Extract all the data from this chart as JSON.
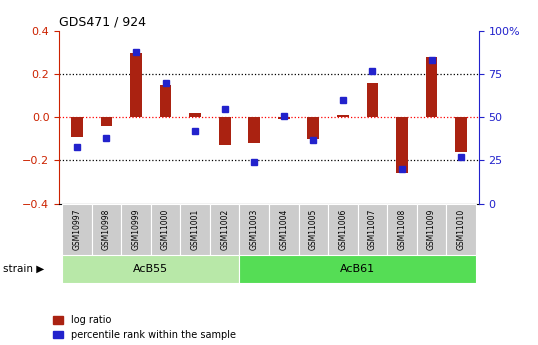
{
  "title": "GDS471 / 924",
  "samples": [
    "GSM10997",
    "GSM10998",
    "GSM10999",
    "GSM11000",
    "GSM11001",
    "GSM11002",
    "GSM11003",
    "GSM11004",
    "GSM11005",
    "GSM11006",
    "GSM11007",
    "GSM11008",
    "GSM11009",
    "GSM11010"
  ],
  "log_ratio": [
    -0.09,
    -0.04,
    0.3,
    0.15,
    0.02,
    -0.13,
    -0.12,
    -0.01,
    -0.1,
    0.01,
    0.16,
    -0.26,
    0.28,
    -0.16
  ],
  "percentile_rank": [
    33,
    38,
    88,
    70,
    42,
    55,
    24,
    51,
    37,
    60,
    77,
    20,
    83,
    27
  ],
  "groups": [
    {
      "label": "AcB55",
      "start": 0,
      "end": 5,
      "color": "#b8e8a8"
    },
    {
      "label": "AcB61",
      "start": 6,
      "end": 13,
      "color": "#55dd55"
    }
  ],
  "ylim": [
    -0.4,
    0.4
  ],
  "yticks_left": [
    -0.4,
    -0.2,
    0.0,
    0.2,
    0.4
  ],
  "yticks_right": [
    0,
    25,
    50,
    75,
    100
  ],
  "bar_color": "#aa2211",
  "dot_color": "#2222cc",
  "left_axis_color": "#cc2200",
  "right_axis_color": "#2222cc",
  "tick_area_color": "#cccccc",
  "strain_label": "strain",
  "legend_log": "log ratio",
  "legend_pct": "percentile rank within the sample"
}
